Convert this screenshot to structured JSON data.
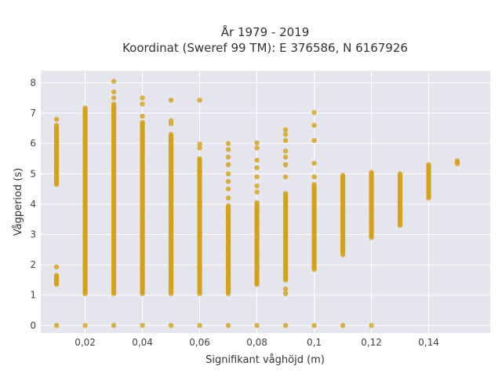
{
  "chart_data": {
    "type": "scatter",
    "title": "År 1979 - 2019",
    "subtitle": "Koordinat (Sweref 99 TM): E 376586, N 6167926",
    "xlabel": "Signifikant våghöjd (m)",
    "ylabel": "Vågperiod (s)",
    "xlim": [
      0.0045,
      0.1615
    ],
    "ylim": [
      -0.25,
      8.4
    ],
    "x_ticks": [
      0.02,
      0.04,
      0.06,
      0.08,
      0.1,
      0.12,
      0.14
    ],
    "x_tick_labels": [
      "0,02",
      "0,04",
      "0,06",
      "0,08",
      "0,1",
      "0,12",
      "0,14"
    ],
    "y_ticks": [
      0,
      1,
      2,
      3,
      4,
      5,
      6,
      7,
      8
    ],
    "y_tick_labels": [
      "0",
      "1",
      "2",
      "3",
      "4",
      "5",
      "6",
      "7",
      "8"
    ],
    "grid": true,
    "legend": "none",
    "marker_color": "#d4a017",
    "background_color": "#e5e5ee",
    "series": [
      {
        "columns": [
          {
            "x": 0.01,
            "ranges": [
              [
                1.35,
                1.65
              ],
              [
                4.7,
                6.6
              ]
            ],
            "points": [
              0,
              1.93,
              4.65,
              6.8
            ]
          },
          {
            "x": 0.02,
            "ranges": [
              [
                1.05,
                7.1
              ]
            ],
            "points": [
              0,
              7.17
            ]
          },
          {
            "x": 0.03,
            "ranges": [
              [
                1.05,
                7.3
              ]
            ],
            "points": [
              0,
              7.5,
              7.7,
              8.05
            ]
          },
          {
            "x": 0.04,
            "ranges": [
              [
                1.05,
                6.7
              ]
            ],
            "points": [
              0,
              6.9,
              7.3,
              7.5
            ]
          },
          {
            "x": 0.05,
            "ranges": [
              [
                1.05,
                6.3
              ]
            ],
            "points": [
              0,
              6.65,
              6.75,
              7.43
            ]
          },
          {
            "x": 0.06,
            "ranges": [
              [
                1.05,
                5.5
              ]
            ],
            "points": [
              0,
              5.85,
              5.98,
              7.43
            ]
          },
          {
            "x": 0.07,
            "ranges": [
              [
                1.05,
                3.95
              ]
            ],
            "points": [
              0,
              4.2,
              4.5,
              4.75,
              5.0,
              5.3,
              5.55,
              5.8,
              6.0
            ]
          },
          {
            "x": 0.08,
            "ranges": [
              [
                1.35,
                4.05
              ]
            ],
            "points": [
              0,
              4.4,
              4.6,
              4.9,
              5.2,
              5.45,
              5.85,
              6.02
            ]
          },
          {
            "x": 0.09,
            "ranges": [
              [
                1.5,
                4.35
              ]
            ],
            "points": [
              0,
              1.05,
              1.2,
              4.9,
              5.3,
              5.55,
              5.75,
              6.1,
              6.3,
              6.45
            ]
          },
          {
            "x": 0.1,
            "ranges": [
              [
                1.85,
                4.65
              ]
            ],
            "points": [
              0,
              4.9,
              5.35,
              6.1,
              6.6,
              7.02
            ]
          },
          {
            "x": 0.11,
            "ranges": [
              [
                2.4,
                4.95
              ]
            ],
            "points": [
              0,
              2.33
            ]
          },
          {
            "x": 0.12,
            "ranges": [
              [
                2.9,
                5.05
              ]
            ],
            "points": [
              0
            ]
          },
          {
            "x": 0.13,
            "ranges": [
              [
                3.3,
                5.0
              ]
            ],
            "points": []
          },
          {
            "x": 0.14,
            "ranges": [
              [
                4.2,
                5.3
              ]
            ],
            "points": []
          },
          {
            "x": 0.15,
            "ranges": [
              [
                5.33,
                5.47
              ]
            ],
            "points": []
          }
        ]
      }
    ]
  }
}
